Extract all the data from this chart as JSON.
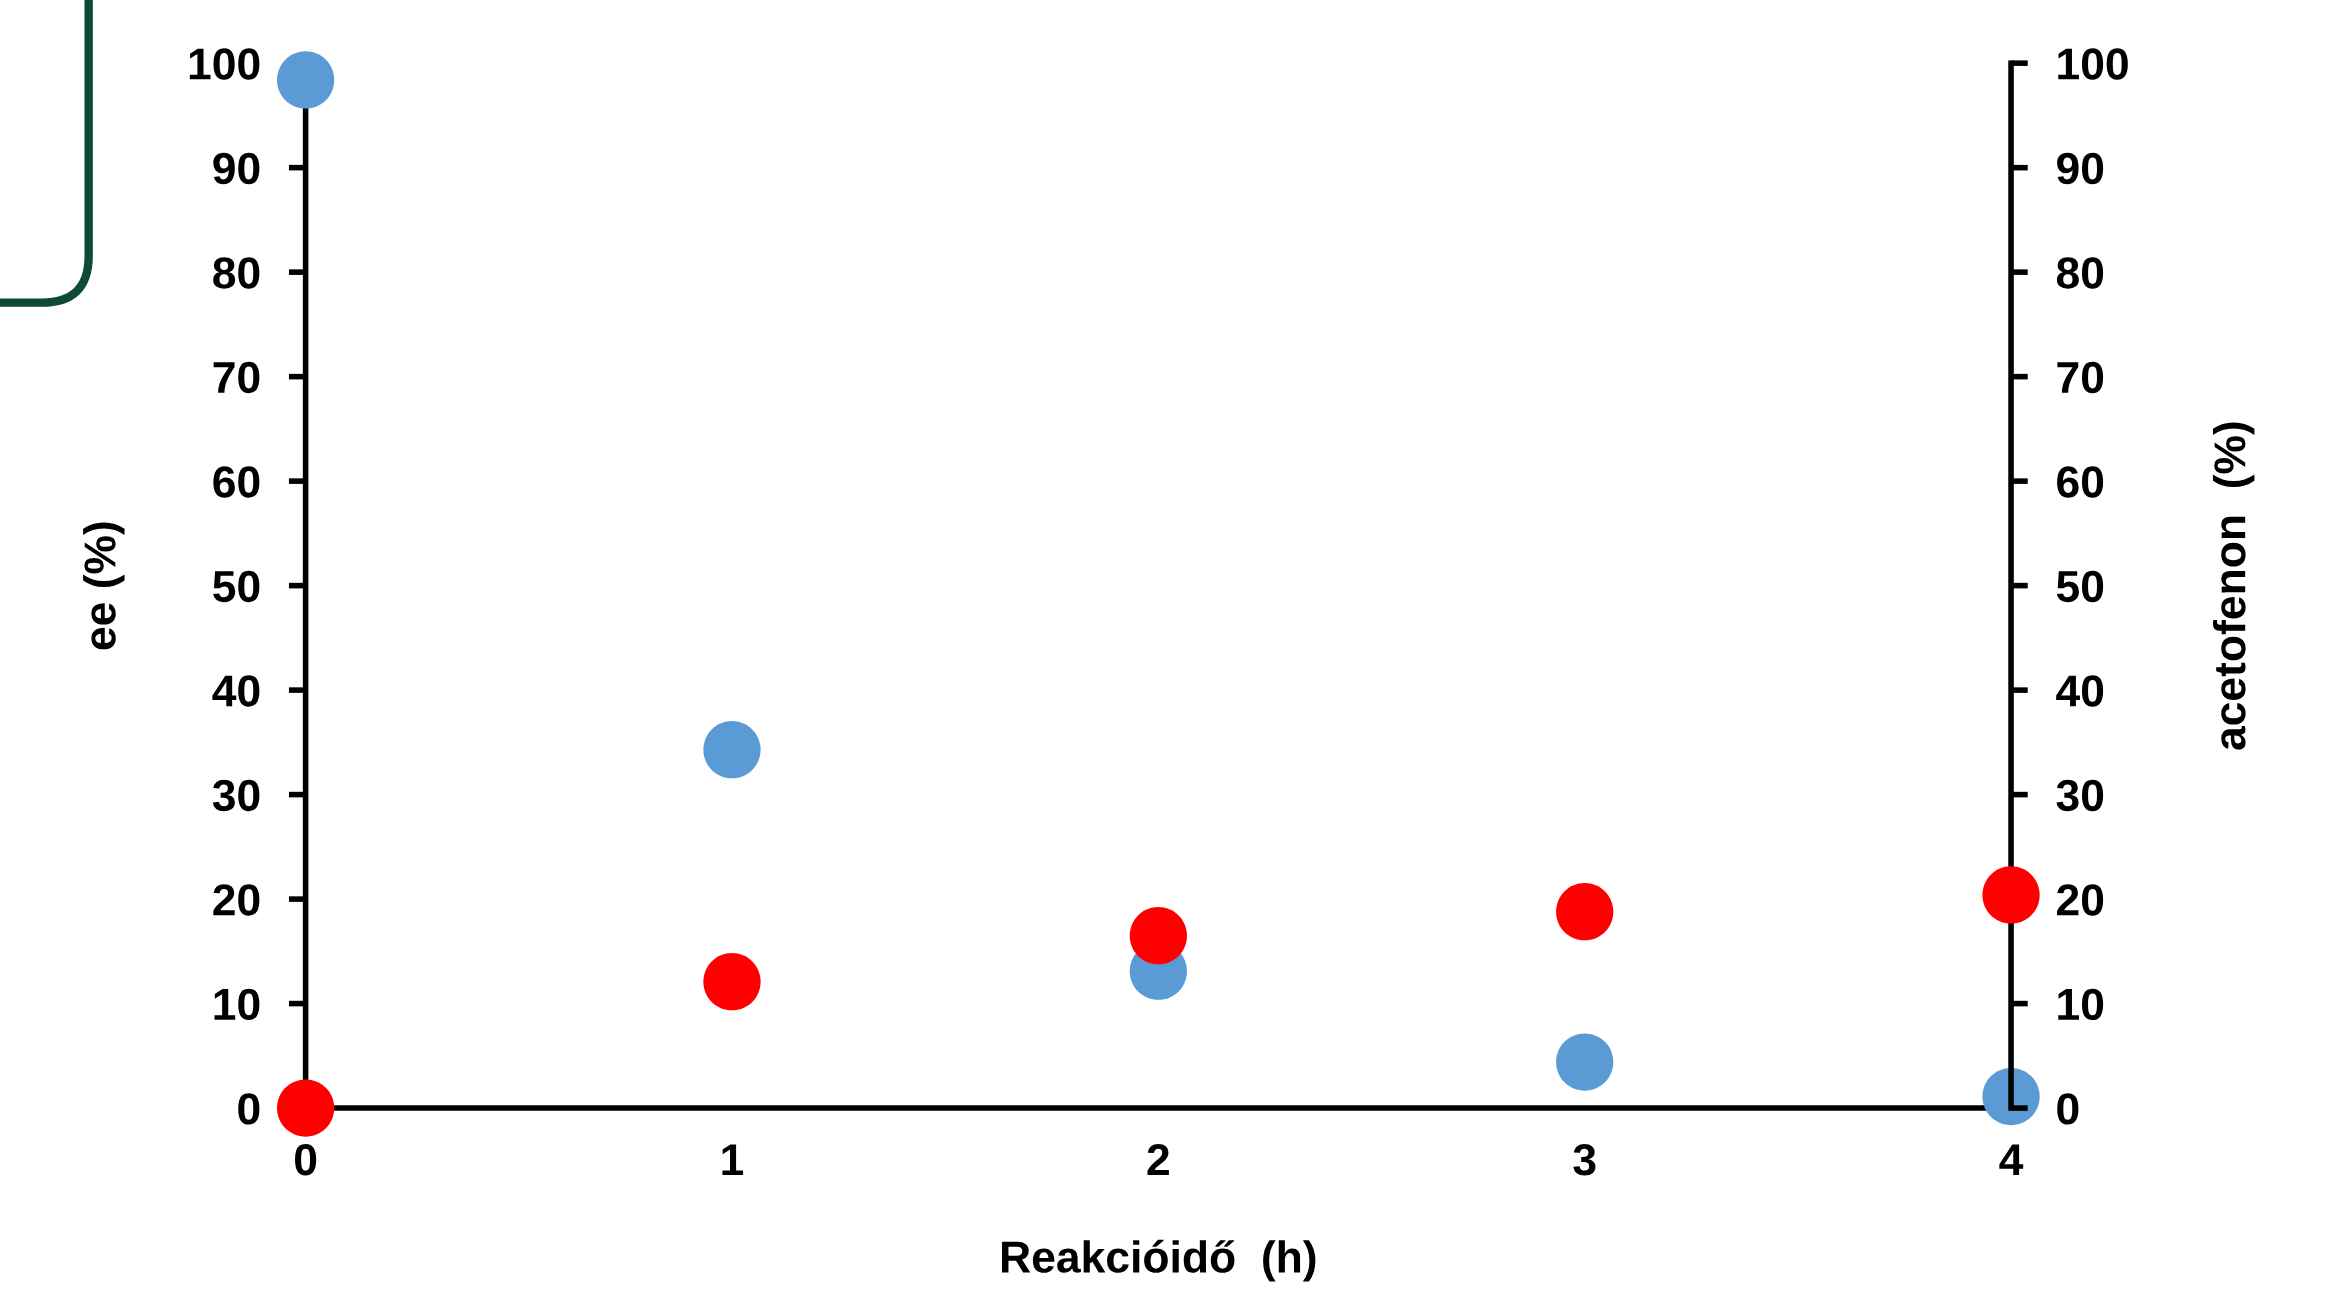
{
  "chart_data": {
    "type": "scatter",
    "xlabel": "Reakcióidő  (h)",
    "ylabel": "ee (%)",
    "y2label": "acetofenon  (%)",
    "x": [
      0,
      1,
      2,
      3,
      4
    ],
    "xlim": [
      0,
      4
    ],
    "xticks": [
      0,
      1,
      2,
      3,
      4
    ],
    "ylim": [
      0,
      100
    ],
    "yticks": [
      0,
      10,
      20,
      30,
      40,
      50,
      60,
      70,
      80,
      90,
      100
    ],
    "y2lim": [
      0,
      100
    ],
    "y2ticks": [
      0,
      10,
      20,
      30,
      40,
      50,
      60,
      70,
      80,
      90,
      100
    ],
    "series": [
      {
        "color": "#5b9bd5",
        "values": [
          98.4,
          34.3,
          13.1,
          4.4,
          1.1
        ]
      },
      {
        "color": "#ff0000",
        "axis": "y2",
        "values": [
          0,
          12.1,
          16.5,
          18.8,
          20.4
        ]
      }
    ],
    "marker": "circle",
    "grid": false,
    "legend": false
  }
}
